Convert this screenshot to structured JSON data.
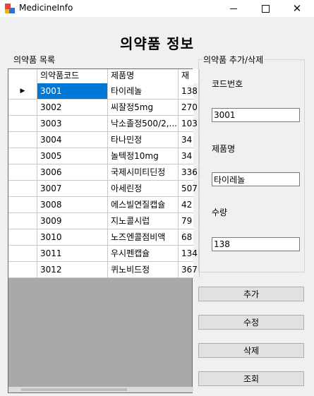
{
  "window": {
    "title": "MedicineInfo"
  },
  "main_title": "의약품 정보",
  "list_group": {
    "label": "의약품 목록"
  },
  "edit_group": {
    "label": "의약품 추가/삭제"
  },
  "grid": {
    "columns": [
      "",
      "의약품코드",
      "제품명",
      "재"
    ],
    "rows": [
      {
        "code": "3001",
        "name": "타이레놀",
        "qty": "138",
        "selected": true
      },
      {
        "code": "3002",
        "name": "씨잘정5mg",
        "qty": "270"
      },
      {
        "code": "3003",
        "name": "낙소졸정500/2,...",
        "qty": "103"
      },
      {
        "code": "3004",
        "name": "타나민정",
        "qty": "34"
      },
      {
        "code": "3005",
        "name": "놀텍정10mg",
        "qty": "34"
      },
      {
        "code": "3006",
        "name": "국제시미티딘정",
        "qty": "336"
      },
      {
        "code": "3007",
        "name": "아세린정",
        "qty": "507"
      },
      {
        "code": "3008",
        "name": "에스빌연질캡슐",
        "qty": "42"
      },
      {
        "code": "3009",
        "name": "지노콜시럽",
        "qty": "79"
      },
      {
        "code": "3010",
        "name": "노즈엔콜점비액",
        "qty": "68"
      },
      {
        "code": "3011",
        "name": "우시펜캡슐",
        "qty": "134"
      },
      {
        "code": "3012",
        "name": "퀴노비드정",
        "qty": "367"
      }
    ],
    "row_indicator": "▶"
  },
  "form": {
    "code_label": "코드번호",
    "code_value": "3001",
    "name_label": "제품명",
    "name_value": "타이레놀",
    "qty_label": "수량",
    "qty_value": "138"
  },
  "buttons": {
    "add": "추가",
    "edit": "수정",
    "delete": "삭제",
    "view": "조회"
  },
  "colors": {
    "selection": "#0078d7",
    "background": "#f0f0f0",
    "grid_empty": "#a9a9a9"
  }
}
